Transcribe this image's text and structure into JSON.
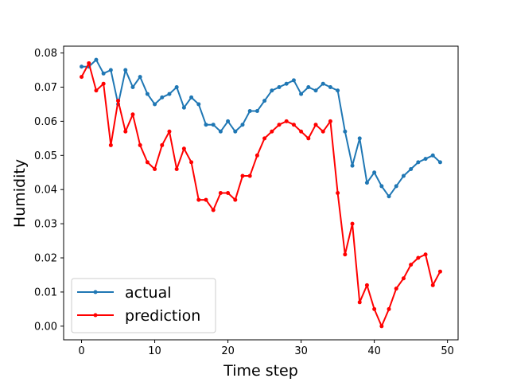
{
  "chart_data": {
    "type": "line",
    "xlabel": "Time step",
    "ylabel": "Humidity",
    "xlim": [
      -2.45,
      51.45
    ],
    "ylim": [
      -0.004,
      0.082
    ],
    "xticks": [
      0,
      10,
      20,
      30,
      40,
      50
    ],
    "yticks": [
      0.0,
      0.01,
      0.02,
      0.03,
      0.04,
      0.05,
      0.06,
      0.07,
      0.08
    ],
    "ytick_labels": [
      "0.00",
      "0.01",
      "0.02",
      "0.03",
      "0.04",
      "0.05",
      "0.06",
      "0.07",
      "0.08"
    ],
    "grid": false,
    "legend_position": "lower-left",
    "x": [
      0,
      1,
      2,
      3,
      4,
      5,
      6,
      7,
      8,
      9,
      10,
      11,
      12,
      13,
      14,
      15,
      16,
      17,
      18,
      19,
      20,
      21,
      22,
      23,
      24,
      25,
      26,
      27,
      28,
      29,
      30,
      31,
      32,
      33,
      34,
      35,
      36,
      37,
      38,
      39,
      40,
      41,
      42,
      43,
      44,
      45,
      46,
      47,
      48,
      49
    ],
    "series": [
      {
        "name": "actual",
        "color": "#1f77b4",
        "marker": "circle",
        "values": [
          0.076,
          0.076,
          0.078,
          0.074,
          0.075,
          0.065,
          0.075,
          0.07,
          0.073,
          0.068,
          0.065,
          0.067,
          0.068,
          0.07,
          0.064,
          0.067,
          0.065,
          0.059,
          0.059,
          0.057,
          0.06,
          0.057,
          0.059,
          0.063,
          0.063,
          0.066,
          0.069,
          0.07,
          0.071,
          0.072,
          0.068,
          0.07,
          0.069,
          0.071,
          0.07,
          0.069,
          0.057,
          0.047,
          0.055,
          0.042,
          0.045,
          0.041,
          0.038,
          0.041,
          0.044,
          0.046,
          0.048,
          0.049,
          0.05,
          0.048
        ]
      },
      {
        "name": "prediction",
        "color": "#ff0000",
        "marker": "circle",
        "values": [
          0.073,
          0.077,
          0.069,
          0.071,
          0.053,
          0.066,
          0.057,
          0.062,
          0.053,
          0.048,
          0.046,
          0.053,
          0.057,
          0.046,
          0.052,
          0.048,
          0.037,
          0.037,
          0.034,
          0.039,
          0.039,
          0.037,
          0.044,
          0.044,
          0.05,
          0.055,
          0.057,
          0.059,
          0.06,
          0.059,
          0.057,
          0.055,
          0.059,
          0.057,
          0.06,
          0.039,
          0.021,
          0.03,
          0.007,
          0.012,
          0.005,
          0.0,
          0.005,
          0.011,
          0.014,
          0.018,
          0.02,
          0.021,
          0.012,
          0.016
        ]
      }
    ]
  }
}
